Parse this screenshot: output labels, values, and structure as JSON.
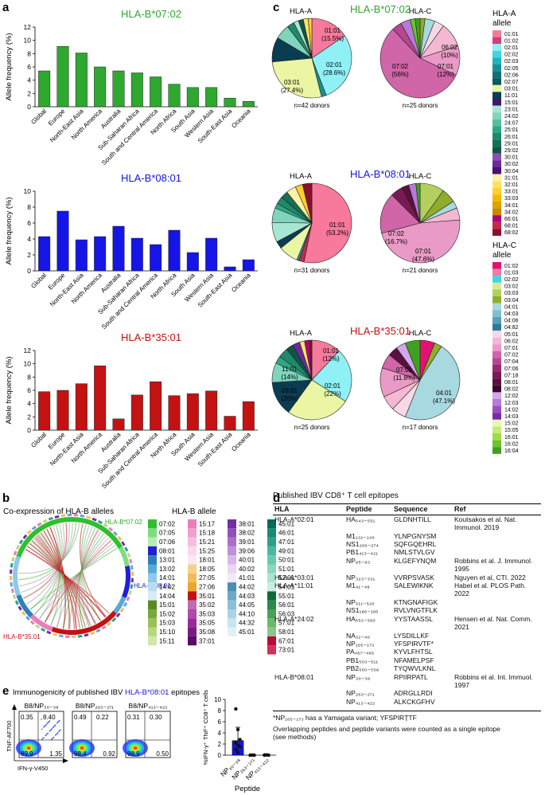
{
  "panel_labels": {
    "a": "a",
    "b": "b",
    "c": "c",
    "d": "d",
    "e": "e"
  },
  "colors": {
    "green": "#2ea82e",
    "blue": "#1515e8",
    "red": "#c41212"
  },
  "panel_a": {
    "ylabel": "Allele frequency (%)",
    "ticks": [
      "0",
      "2",
      "4",
      "6",
      "8",
      "10",
      "12"
    ]
  },
  "chart_data": [
    {
      "type": "bar",
      "title": "HLA-B*07:02",
      "ylabel": "Allele frequency (%)",
      "ylim": [
        0,
        12
      ],
      "categories": [
        "Global",
        "Europe",
        "North-East Asia",
        "North America",
        "Australia",
        "Sub-Saharan Africa",
        "South and Central America",
        "North Africa",
        "South Asia",
        "Western Asia",
        "South-East Asia",
        "Oceania"
      ],
      "values": [
        5.4,
        9.1,
        8.1,
        6.0,
        5.4,
        5.1,
        4.5,
        3.4,
        2.9,
        2.9,
        1.3,
        0.8
      ],
      "color": "#2ea82e"
    },
    {
      "type": "bar",
      "title": "HLA-B*08:01",
      "ylabel": "Allele frequency (%)",
      "ylim": [
        0,
        10
      ],
      "categories": [
        "Global",
        "Europe",
        "North-East Asia",
        "North America",
        "Australia",
        "Sub-Saharan Africa",
        "South and Central America",
        "North Africa",
        "South Asia",
        "Western Asia",
        "South-East Asia",
        "Oceania"
      ],
      "values": [
        4.3,
        7.5,
        3.9,
        4.3,
        5.6,
        4.1,
        3.3,
        5.1,
        2.3,
        4.1,
        0.5,
        1.4
      ],
      "color": "#1515e8"
    },
    {
      "type": "bar",
      "title": "HLA-B*35:01",
      "ylabel": "Allele frequency (%)",
      "ylim": [
        0,
        12
      ],
      "categories": [
        "Global",
        "Europe",
        "North-East Asia",
        "North America",
        "Australia",
        "Sub-Saharan Africa",
        "South and Central America",
        "North Africa",
        "South Asia",
        "Western Asia",
        "South-East Asia",
        "Oceania"
      ],
      "values": [
        5.8,
        6.0,
        7.0,
        9.7,
        1.7,
        5.3,
        7.3,
        5.2,
        5.5,
        5.9,
        2.1,
        4.3
      ],
      "color": "#c41212"
    }
  ],
  "panel_c": {
    "hla_a_header": "HLA-A",
    "hla_c_header": "HLA-C",
    "legend_a_title": "HLA-A allele",
    "legend_c_title": "HLA-C allele",
    "rows": [
      {
        "title": "HLA-B*07:02",
        "color": "#2ea82e",
        "a_donors": "n=42 donors",
        "c_donors": "n=25 donors",
        "a_labels": [
          {
            "text": "01:01",
            "sub": "(15.5%)"
          },
          {
            "text": "02:01",
            "sub": "(28.6%)"
          },
          {
            "text": "03:01",
            "sub": "(27.4%)"
          }
        ],
        "c_labels": [
          {
            "text": "06:02",
            "sub": "(10%)"
          },
          {
            "text": "07:01",
            "sub": "(12%)"
          },
          {
            "text": "07:02",
            "sub": "(56%)"
          }
        ]
      },
      {
        "title": "HLA-B*08:01",
        "color": "#1515e8",
        "a_donors": "n=31 donors",
        "c_donors": "n=21 donors",
        "a_labels": [
          {
            "text": "01:01",
            "sub": "(53.2%)"
          }
        ],
        "c_labels": [
          {
            "text": "07:02",
            "sub": "(16.7%)"
          },
          {
            "text": "07:01",
            "sub": "(47.6%)"
          }
        ]
      },
      {
        "title": "HLA-B*35:01",
        "color": "#c41212",
        "a_donors": "n=25 donors",
        "c_donors": "n=17 donors",
        "a_labels": [
          {
            "text": "01:01",
            "sub": "(12%)"
          },
          {
            "text": "02:01",
            "sub": "(22%)"
          },
          {
            "text": "03:01",
            "sub": "(26%)"
          },
          {
            "text": "11:01",
            "sub": "(14%)"
          }
        ],
        "c_labels": [
          {
            "text": "07:01",
            "sub": "(11.8%)"
          },
          {
            "text": "04:01",
            "sub": "(47.1%)"
          }
        ]
      }
    ],
    "legend_a": [
      {
        "label": "01:01",
        "color": "#f7799b"
      },
      {
        "label": "01:02",
        "color": "#d43e79"
      },
      {
        "label": "02:01",
        "color": "#8ff0f5"
      },
      {
        "label": "02:02",
        "color": "#3fd5df"
      },
      {
        "label": "02:03",
        "color": "#20b3bd"
      },
      {
        "label": "02:05",
        "color": "#178f97"
      },
      {
        "label": "02:06",
        "color": "#107178"
      },
      {
        "label": "02:07",
        "color": "#0a5a5e"
      },
      {
        "label": "03:01",
        "color": "#eaf6a3"
      },
      {
        "label": "11:01",
        "color": "#0b3d52"
      },
      {
        "label": "15:01",
        "color": "#3a1a6a"
      },
      {
        "label": "23:01",
        "color": "#a8e6d4"
      },
      {
        "label": "24:02",
        "color": "#7fd5bb"
      },
      {
        "label": "24:07",
        "color": "#55c0a0"
      },
      {
        "label": "25:01",
        "color": "#2ea884"
      },
      {
        "label": "26:01",
        "color": "#1f8a6b"
      },
      {
        "label": "29:01",
        "color": "#167056"
      },
      {
        "label": "29:02",
        "color": "#0e5742"
      },
      {
        "label": "30:01",
        "color": "#8a4fb8"
      },
      {
        "label": "30:02",
        "color": "#6a2a9a"
      },
      {
        "label": "30:04",
        "color": "#4a1078"
      },
      {
        "label": "31:01",
        "color": "#fff2a6"
      },
      {
        "label": "32:01",
        "color": "#ffe16a"
      },
      {
        "label": "33:01",
        "color": "#ffcf2d"
      },
      {
        "label": "33:03",
        "color": "#f5b800"
      },
      {
        "label": "34:01",
        "color": "#e0a000"
      },
      {
        "label": "34:02",
        "color": "#c98a00"
      },
      {
        "label": "66:01",
        "color": "#b0007a"
      },
      {
        "label": "68:01",
        "color": "#c22a4a"
      },
      {
        "label": "68:02",
        "color": "#8a0f2a"
      }
    ],
    "legend_c": [
      {
        "label": "01:02",
        "color": "#e0146e"
      },
      {
        "label": "01:03",
        "color": "#f07aa8"
      },
      {
        "label": "02:02",
        "color": "#3ad8e0"
      },
      {
        "label": "03:02",
        "color": "#d8ea9a"
      },
      {
        "label": "03:03",
        "color": "#b3cf5e"
      },
      {
        "label": "03:04",
        "color": "#8fae2a"
      },
      {
        "label": "04:01",
        "color": "#a8d8e0"
      },
      {
        "label": "04:03",
        "color": "#7fc0d0"
      },
      {
        "label": "04:06",
        "color": "#559fb8"
      },
      {
        "label": "04:82",
        "color": "#2e7a98"
      },
      {
        "label": "05:01",
        "color": "#f7d8e6"
      },
      {
        "label": "06:02",
        "color": "#f5b8d2"
      },
      {
        "label": "07:01",
        "color": "#ea9ac6"
      },
      {
        "label": "07:02",
        "color": "#d065a8"
      },
      {
        "label": "07:04",
        "color": "#b84590"
      },
      {
        "label": "07:06",
        "color": "#9a2a70"
      },
      {
        "label": "07:18",
        "color": "#7a1a55"
      },
      {
        "label": "08:01",
        "color": "#5a1040"
      },
      {
        "label": "08:02",
        "color": "#3a0828"
      },
      {
        "label": "12:02",
        "color": "#d3a8e8"
      },
      {
        "label": "12:03",
        "color": "#b67ad8"
      },
      {
        "label": "14:02",
        "color": "#9650c0"
      },
      {
        "label": "14:03",
        "color": "#7a2aa8"
      },
      {
        "label": "15:02",
        "color": "#e6f7b3"
      },
      {
        "label": "15:05",
        "color": "#c4ec7a"
      },
      {
        "label": "16:01",
        "color": "#9fdc45"
      },
      {
        "label": "16:02",
        "color": "#6fc22a"
      },
      {
        "label": "16:04",
        "color": "#3ea020"
      }
    ]
  },
  "panel_b": {
    "title": "Co-expression of HLA-B alleles",
    "legend_title": "HLA-B allele",
    "circle_labels": [
      {
        "text": "HLA-B*07:02",
        "color": "#2ea82e"
      },
      {
        "text": "HLA-B*08:01",
        "color": "#1515e8"
      },
      {
        "text": "HLA-B*35:01",
        "color": "#c41212"
      }
    ],
    "alleles": [
      {
        "label": "07:02",
        "color": "#2fbf2f"
      },
      {
        "label": "07:05",
        "color": "#7fdc7f"
      },
      {
        "label": "07:06",
        "color": "#b6ecb6"
      },
      {
        "label": "08:01",
        "color": "#2020d8"
      },
      {
        "label": "13:01",
        "color": "#2e7fb8"
      },
      {
        "label": "13:02",
        "color": "#5aa8d8"
      },
      {
        "label": "14:01",
        "color": "#8fc8e8"
      },
      {
        "label": "14:02",
        "color": "#b8dcf0"
      },
      {
        "label": "14:04",
        "color": "#d8ecf7"
      },
      {
        "label": "15:01",
        "color": "#5a8a22"
      },
      {
        "label": "15:02",
        "color": "#7aa83a"
      },
      {
        "label": "15:03",
        "color": "#9ac05a"
      },
      {
        "label": "15:10",
        "color": "#b8d87f"
      },
      {
        "label": "15:11",
        "color": "#d0e8a8"
      },
      {
        "label": "15:17",
        "color": "#e87fb8"
      },
      {
        "label": "15:18",
        "color": "#f0a0cc"
      },
      {
        "label": "15:21",
        "color": "#f5bedc"
      },
      {
        "label": "15:25",
        "color": "#f9d8ea"
      },
      {
        "label": "18:01",
        "color": "#fbe8f2"
      },
      {
        "label": "18:05",
        "color": "#f5d08a"
      },
      {
        "label": "27:05",
        "color": "#f0bd5a"
      },
      {
        "label": "27:06",
        "color": "#e8a82e"
      },
      {
        "label": "35:01",
        "color": "#c41212"
      },
      {
        "label": "35:02",
        "color": "#c06ab8"
      },
      {
        "label": "35:03",
        "color": "#b04aa8"
      },
      {
        "label": "35:05",
        "color": "#9a2a98"
      },
      {
        "label": "35:08",
        "color": "#7a1a80"
      },
      {
        "label": "37:01",
        "color": "#5a0a68"
      },
      {
        "label": "38:01",
        "color": "#7030a0"
      },
      {
        "label": "38:02",
        "color": "#9050b8"
      },
      {
        "label": "39:01",
        "color": "#a870c8"
      },
      {
        "label": "39:06",
        "color": "#c090d8"
      },
      {
        "label": "40:01",
        "color": "#d8b8e8"
      },
      {
        "label": "40:02",
        "color": "#e8d8f2"
      },
      {
        "label": "41:01",
        "color": "#f2eaf8"
      },
      {
        "label": "44:02",
        "color": "#4a90b0"
      },
      {
        "label": "44:03",
        "color": "#6aa8c8"
      },
      {
        "label": "44:05",
        "color": "#8ac0d8"
      },
      {
        "label": "44:10",
        "color": "#aad4e4"
      },
      {
        "label": "44:32",
        "color": "#c8e4f0"
      },
      {
        "label": "45:01",
        "color": "#e0f0f7"
      },
      {
        "label": "45:01",
        "color": "#0a6a5a"
      },
      {
        "label": "46:01",
        "color": "#1a8a70"
      },
      {
        "label": "47:01",
        "color": "#2aa088"
      },
      {
        "label": "49:01",
        "color": "#4ab8a0"
      },
      {
        "label": "50:01",
        "color": "#6acab0"
      },
      {
        "label": "51:01",
        "color": "#8ad8c0"
      },
      {
        "label": "52:01",
        "color": "#aae4d0"
      },
      {
        "label": "54:01",
        "color": "#c8efe0"
      },
      {
        "label": "55:01",
        "color": "#126a3a"
      },
      {
        "label": "56:01",
        "color": "#2a8a4a"
      },
      {
        "label": "56:03",
        "color": "#4aa05a"
      },
      {
        "label": "57:01",
        "color": "#6ab86a"
      },
      {
        "label": "58:01",
        "color": "#8ac88a"
      },
      {
        "label": "67:01",
        "color": "#b80a3a"
      },
      {
        "label": "73:01",
        "color": "#d0305a"
      }
    ]
  },
  "panel_d": {
    "title": "Published IBV CD8⁺ T cell epitopes",
    "headers": {
      "hla": "HLA",
      "peptide": "Peptide",
      "sequence": "Sequence",
      "ref": "Ref"
    },
    "rows": [
      {
        "hla": "HLA-A*02:01",
        "peptide": "HA₅₄₃₋₅₅₁",
        "sequence": "GLDNHTILL",
        "ref": "Koutsakos et al. Nat. Immunol. 2019"
      },
      {
        "hla": "",
        "peptide": "M1₁₃₂₋₁₄₀",
        "sequence": "YLNPGNYSM",
        "ref": ""
      },
      {
        "hla": "",
        "peptide": "NS1₂₆₆₋₂₇₄",
        "sequence": "SQFGQEHRL",
        "ref": ""
      },
      {
        "hla": "",
        "peptide": "PB1₄₁₃₋₄₂₁",
        "sequence": "NMLSTVLGV",
        "ref": ""
      },
      {
        "hla": "",
        "peptide": "NP₈₅₋₉₃",
        "sequence": "KLGEFYNQM",
        "ref": "Robbins et al. J. Immunol. 1995"
      },
      {
        "hla": "HLA-A*03:01",
        "peptide": "NP₃₂₃₋₃₃₁",
        "sequence": "VVRPSVASK",
        "ref": "Nguyen et al, CTI. 2022"
      },
      {
        "hla": "HLA-A*11:01",
        "peptide": "M1₄₁₋₄₉",
        "sequence": "SALEWIKNK",
        "ref": "Habel et al. PLOS Path. 2022"
      },
      {
        "hla": "",
        "peptide": "NP₅₁₁₋₅₂₀",
        "sequence": "KTNGNAFIGK",
        "ref": ""
      },
      {
        "hla": "",
        "peptide": "NS1₁₈₆₋₁₉₅",
        "sequence": "RVLVNGTFLK",
        "ref": ""
      },
      {
        "hla": "HLA-A*24:02",
        "peptide": "HA₅₅₂₋₅₆₀",
        "sequence": "YYSTAASSL",
        "ref": "Hensen et al. Nat. Comm. 2021"
      },
      {
        "hla": "",
        "peptide": "NA₃₂₋₄₀",
        "sequence": "LYSDILLKF",
        "ref": ""
      },
      {
        "hla": "",
        "peptide": "NP₁₆₅₋₁₇₃",
        "sequence": "YFSPIRVTF*",
        "ref": ""
      },
      {
        "hla": "",
        "peptide": "PA₄₅₇₋₄₆₅",
        "sequence": "KYVLFHTSL",
        "ref": ""
      },
      {
        "hla": "",
        "peptide": "PB1₅₀₃₋₅₁₁",
        "sequence": "NFAMELPSF",
        "ref": ""
      },
      {
        "hla": "",
        "peptide": "PB2₅₅₀₋₅₅₈",
        "sequence": "TYQWVLKNL",
        "ref": ""
      },
      {
        "hla": "HLA-B*08:01",
        "peptide": "NP₃₀₋₃₈",
        "sequence": "RPIIRPATL",
        "ref": "Robbins et al. Int. Immuol. 1997"
      },
      {
        "hla": "",
        "peptide": "NP₂₆₃₋₂₇₁",
        "sequence": "ADRGLLRDI",
        "ref": ""
      },
      {
        "hla": "",
        "peptide": "NP₄₁₃₋₄₂₂",
        "sequence": "ALKCKGFHV",
        "ref": ""
      }
    ],
    "footnote1": "*NP₁₆₅₋₁₇₃ has a Yamagata variant; YFSPIRȚTF",
    "footnote2": "Overlapping peptides and peptide variants were counted as a single epitope (see methods)"
  },
  "panel_e": {
    "title_pre": "Immunogenicity of published IBV ",
    "title_allele": "HLA-B*08:01",
    "title_post": " epitopes",
    "plots": [
      {
        "label": "B8/NP₃₀₋₃₈",
        "ul": "0.35",
        "ur": "8.40",
        "ll": "89.9",
        "lr": "1.35"
      },
      {
        "label": "B8/NP₂₆₃₋₂₇₁",
        "ul": "0.49",
        "ur": "0.22",
        "ll": "98.4",
        "lr": "0.92"
      },
      {
        "label": "B8/NP₄₁₃₋₄₂₂",
        "ul": "0.31",
        "ur": "0.30",
        "ll": "98.9",
        "lr": "0.50"
      }
    ],
    "yaxis": "TNF-AF700",
    "xaxis": "IFN-γ-V450",
    "dot_chart": {
      "ylabel": "%IFN-γ⁺ TNF⁺ CD8⁺ T cells",
      "xlabel": "Peptide",
      "ticks": [
        "0",
        "2",
        "4",
        "6",
        "8",
        "10"
      ],
      "categories": [
        "NP₃₀₋₃₈",
        "NP₂₆₃₋₂₇₁",
        "NP₄₁₃₋₄₂₂"
      ],
      "points": [
        [
          8.3,
          4.6,
          2.8,
          2.2,
          1.8,
          1.5,
          1.0,
          0.5
        ],
        [
          0.0,
          0.0,
          0.0
        ],
        [
          0.0,
          0.05,
          0.0,
          0.02
        ]
      ],
      "means": [
        2.6,
        0.0,
        0.02
      ],
      "sd": [
        2.4,
        0,
        0.02
      ],
      "ylim": [
        0,
        10
      ]
    }
  }
}
